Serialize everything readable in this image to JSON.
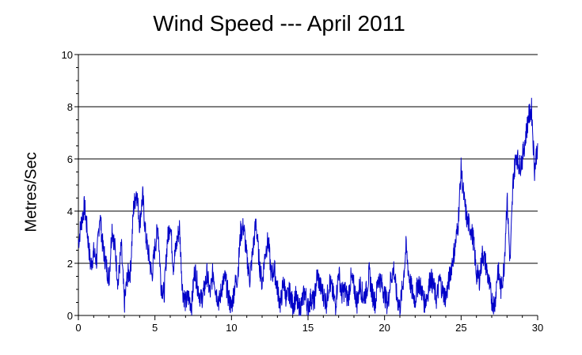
{
  "chart_data": {
    "type": "line",
    "title": "Wind Speed --- April 2011",
    "xlabel": "",
    "ylabel": "Metres/Sec",
    "xlim": [
      0,
      30
    ],
    "ylim": [
      0,
      10
    ],
    "x_ticks": [
      0,
      5,
      10,
      15,
      20,
      25,
      30
    ],
    "x_tick_labels": [
      "0",
      "5",
      "10",
      "15",
      "20",
      "25",
      "30"
    ],
    "y_ticks": [
      0,
      2,
      4,
      6,
      8,
      10
    ],
    "y_tick_labels": [
      "0",
      "2",
      "4",
      "6",
      "8",
      "10"
    ],
    "grid": "horizontal",
    "line_color": "#0000c8",
    "series": [
      {
        "x": [
          0,
          0.2,
          0.4,
          0.6,
          0.8,
          1.0,
          1.2,
          1.4,
          1.6,
          1.8,
          2.0,
          2.2,
          2.4,
          2.6,
          2.8,
          3.0,
          3.2,
          3.4,
          3.6,
          3.8,
          4.0,
          4.2,
          4.4,
          4.6,
          4.8,
          5.0,
          5.2,
          5.4,
          5.6,
          5.8,
          6.0,
          6.2,
          6.4,
          6.6,
          6.8,
          7.0,
          7.2,
          7.4,
          7.6,
          7.8,
          8.0,
          8.2,
          8.4,
          8.6,
          8.8,
          9.0,
          9.2,
          9.4,
          9.6,
          9.8,
          10.0,
          10.2,
          10.4,
          10.6,
          10.8,
          11.0,
          11.2,
          11.4,
          11.6,
          11.8,
          12.0,
          12.2,
          12.4,
          12.6,
          12.8,
          13.0,
          13.2,
          13.4,
          13.6,
          13.8,
          14.0,
          14.2,
          14.4,
          14.6,
          14.8,
          15.0,
          15.2,
          15.4,
          15.6,
          15.8,
          16.0,
          16.2,
          16.4,
          16.6,
          16.8,
          17.0,
          17.2,
          17.4,
          17.6,
          17.8,
          18.0,
          18.2,
          18.4,
          18.6,
          18.8,
          19.0,
          19.2,
          19.4,
          19.6,
          19.8,
          20.0,
          20.2,
          20.4,
          20.6,
          20.8,
          21.0,
          21.2,
          21.4,
          21.6,
          21.8,
          22.0,
          22.2,
          22.4,
          22.6,
          22.8,
          23.0,
          23.2,
          23.4,
          23.6,
          23.8,
          24.0,
          24.2,
          24.4,
          24.6,
          24.8,
          25.0,
          25.2,
          25.4,
          25.6,
          25.8,
          26.0,
          26.2,
          26.4,
          26.6,
          26.8,
          27.0,
          27.2,
          27.4,
          27.6,
          27.8,
          28.0,
          28.2,
          28.4,
          28.6,
          28.8,
          29.0,
          29.2,
          29.4,
          29.6,
          29.8,
          30.0
        ],
        "y": [
          2.8,
          3.6,
          4.2,
          3.1,
          1.9,
          2.4,
          2.1,
          3.9,
          2.6,
          2.0,
          1.4,
          3.4,
          2.5,
          1.2,
          2.7,
          0.4,
          1.5,
          1.7,
          4.1,
          4.8,
          3.5,
          4.6,
          3.0,
          2.3,
          1.5,
          2.6,
          3.4,
          1.2,
          0.8,
          2.8,
          3.6,
          1.9,
          2.7,
          3.4,
          1.0,
          0.5,
          0.7,
          0.4,
          1.8,
          1.1,
          0.6,
          0.9,
          1.6,
          0.8,
          1.7,
          0.9,
          0.5,
          1.2,
          1.4,
          0.7,
          0.3,
          1.1,
          1.5,
          3.2,
          3.4,
          2.2,
          1.4,
          2.5,
          3.6,
          2.1,
          1.2,
          2.4,
          2.9,
          1.5,
          1.8,
          1.0,
          0.4,
          1.3,
          0.6,
          0.9,
          0.4,
          0.7,
          0.2,
          0.5,
          0.9,
          0.3,
          0.7,
          0.5,
          1.6,
          1.1,
          0.8,
          0.5,
          1.3,
          0.9,
          0.4,
          1.7,
          0.8,
          1.0,
          0.6,
          1.4,
          1.1,
          0.5,
          1.2,
          0.7,
          0.9,
          1.6,
          0.8,
          0.5,
          1.5,
          1.2,
          0.8,
          0.4,
          1.4,
          1.8,
          0.7,
          0.3,
          1.2,
          2.6,
          1.5,
          0.9,
          0.6,
          1.3,
          1.0,
          0.5,
          0.8,
          1.5,
          1.1,
          0.6,
          1.4,
          0.9,
          0.7,
          1.3,
          2.0,
          2.6,
          3.5,
          5.6,
          4.4,
          3.6,
          3.4,
          2.9,
          1.6,
          1.4,
          2.4,
          2.0,
          1.3,
          0.6,
          0.4,
          1.8,
          1.0,
          1.8,
          4.5,
          2.0,
          5.2,
          6.2,
          5.7,
          6.0,
          6.8,
          7.6,
          7.9,
          5.6,
          6.6
        ]
      }
    ]
  }
}
